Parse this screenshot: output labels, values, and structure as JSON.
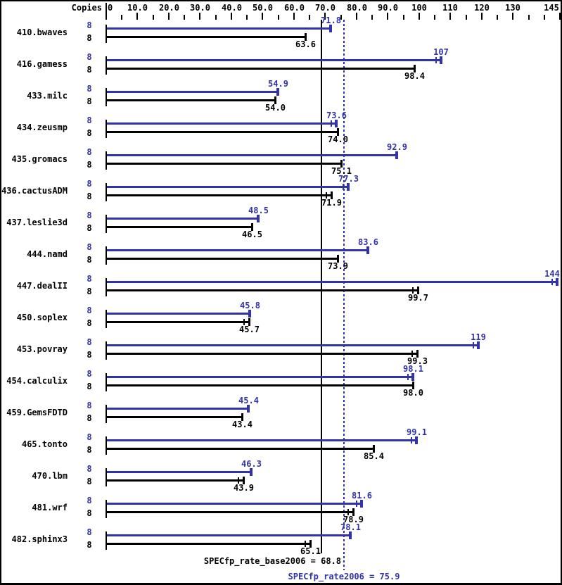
{
  "header": {
    "copies_label": "Copies"
  },
  "colors": {
    "peak": "#3232aa",
    "base": "#000000",
    "text": "#000000",
    "background": "#ffffff",
    "border": "#000000"
  },
  "chart_data": {
    "type": "bar",
    "orientation": "horizontal",
    "grid": false,
    "legend_position": "none",
    "categories": [
      "410.bwaves",
      "416.gamess",
      "433.milc",
      "434.zeusmp",
      "435.gromacs",
      "436.cactusADM",
      "437.leslie3d",
      "444.namd",
      "447.dealII",
      "450.soplex",
      "453.povray",
      "454.calculix",
      "459.GemsFDTD",
      "465.tonto",
      "470.lbm",
      "481.wrf",
      "482.sphinx3"
    ],
    "series": [
      {
        "name": "peak",
        "metric": "SPECfp_rate2006",
        "color": "#3232aa",
        "copies": 8,
        "copies_text": "8",
        "values": [
          71.8,
          107,
          54.9,
          73.6,
          92.9,
          77.3,
          48.5,
          83.6,
          144,
          45.8,
          119,
          98.1,
          45.4,
          99.1,
          46.3,
          81.6,
          78.1
        ],
        "labels": [
          "71.8",
          "107",
          "54.9",
          "73.6",
          "92.9",
          "77.3",
          "48.5",
          "83.6",
          "144",
          "45.8",
          "119",
          "98.1",
          "45.4",
          "99.1",
          "46.3",
          "81.6",
          "78.1"
        ],
        "double_end_tick": [
          false,
          true,
          false,
          true,
          false,
          true,
          false,
          false,
          true,
          false,
          true,
          true,
          false,
          true,
          false,
          true,
          false
        ]
      },
      {
        "name": "base",
        "metric": "SPECfp_rate_base2006",
        "color": "#000000",
        "copies": 8,
        "copies_text": "8",
        "values": [
          63.6,
          98.4,
          54.0,
          74.0,
          75.1,
          71.9,
          46.5,
          73.9,
          99.7,
          45.7,
          99.3,
          98.0,
          43.4,
          85.4,
          43.9,
          78.9,
          65.1
        ],
        "labels": [
          "63.6",
          "98.4",
          "54.0",
          "74.0",
          "75.1",
          "71.9",
          "46.5",
          "73.9",
          "99.7",
          "45.7",
          "99.3",
          "98.0",
          "43.4",
          "85.4",
          "43.9",
          "78.9",
          "65.1"
        ],
        "double_end_tick": [
          false,
          false,
          false,
          false,
          false,
          true,
          false,
          false,
          true,
          true,
          true,
          false,
          false,
          false,
          true,
          true,
          true
        ]
      }
    ],
    "axis": {
      "min": 0,
      "max": 145,
      "tick_interval": 5,
      "major_interval": 10,
      "tick_labels": [
        {
          "value": 0,
          "text": "0"
        },
        {
          "value": 10,
          "text": "10.0"
        },
        {
          "value": 20,
          "text": "20.0"
        },
        {
          "value": 30,
          "text": "30.0"
        },
        {
          "value": 40,
          "text": "40.0"
        },
        {
          "value": 50,
          "text": "50.0"
        },
        {
          "value": 60,
          "text": "60.0"
        },
        {
          "value": 70,
          "text": "70.0"
        },
        {
          "value": 80,
          "text": "80.0"
        },
        {
          "value": 90,
          "text": "90.0"
        },
        {
          "value": 100,
          "text": "100"
        },
        {
          "value": 110,
          "text": "110"
        },
        {
          "value": 120,
          "text": "120"
        },
        {
          "value": 130,
          "text": "130"
        },
        {
          "value": 145,
          "text": "145"
        }
      ]
    },
    "reference_lines": [
      {
        "name": "base-mean",
        "label": "SPECfp_rate_base2006 = 68.8",
        "value": 68.8,
        "style": "solid",
        "color": "#000000"
      },
      {
        "name": "peak-mean",
        "label": "SPECfp_rate2006 = 75.9",
        "value": 75.9,
        "style": "dotted",
        "color": "#3232aa"
      }
    ]
  }
}
